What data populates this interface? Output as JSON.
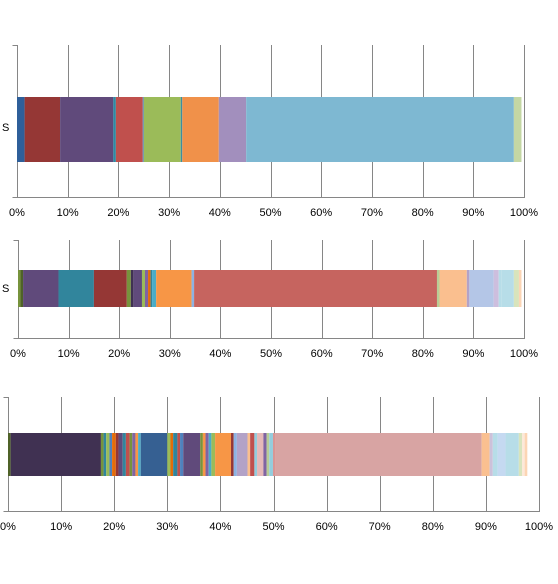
{
  "chart_data": [
    {
      "type": "bar",
      "orientation": "horizontal",
      "stacked": "percent",
      "categories": [
        "S"
      ],
      "xlim": [
        0,
        100
      ],
      "ticks": [
        "0%",
        "10%",
        "20%",
        "30%",
        "40%",
        "50%",
        "60%",
        "70%",
        "80%",
        "90%",
        "100%"
      ],
      "grid": true,
      "legend": "none",
      "segments": [
        {
          "value": 1.5,
          "color": "#2e5f9a"
        },
        {
          "value": 7.0,
          "color": "#953735"
        },
        {
          "value": 10.5,
          "color": "#604a7b"
        },
        {
          "value": 0.5,
          "color": "#2d8ba4"
        },
        {
          "value": 5.3,
          "color": "#c0504d"
        },
        {
          "value": 0.2,
          "color": "#4f81bd"
        },
        {
          "value": 7.3,
          "color": "#9bbb59"
        },
        {
          "value": 0.3,
          "color": "#3c8ea0"
        },
        {
          "value": 7.2,
          "color": "#f0914a"
        },
        {
          "value": 5.4,
          "color": "#a28fbd"
        },
        {
          "value": 52.8,
          "color": "#7eb8d2"
        },
        {
          "value": 1.5,
          "color": "#c4d7a4"
        }
      ]
    },
    {
      "type": "bar",
      "orientation": "horizontal",
      "stacked": "percent",
      "categories": [
        "S"
      ],
      "xlim": [
        0,
        100
      ],
      "ticks": [
        "0%",
        "10%",
        "20%",
        "30%",
        "40%",
        "50%",
        "60%",
        "70%",
        "80%",
        "90%",
        "100%"
      ],
      "grid": true,
      "legend": "none",
      "segments": [
        {
          "value": 0.5,
          "color": "#77933c"
        },
        {
          "value": 0.5,
          "color": "#4f6228"
        },
        {
          "value": 7.0,
          "color": "#604a7b"
        },
        {
          "value": 7.0,
          "color": "#31859c"
        },
        {
          "value": 6.5,
          "color": "#953735"
        },
        {
          "value": 0.8,
          "color": "#77933c"
        },
        {
          "value": 0.5,
          "color": "#403152"
        },
        {
          "value": 1.7,
          "color": "#604a7b"
        },
        {
          "value": 0.6,
          "color": "#9bbb59"
        },
        {
          "value": 0.6,
          "color": "#8064a2"
        },
        {
          "value": 0.5,
          "color": "#e46c0a"
        },
        {
          "value": 0.3,
          "color": "#31859c"
        },
        {
          "value": 0.8,
          "color": "#4bacc6"
        },
        {
          "value": 7.0,
          "color": "#f79646"
        },
        {
          "value": 0.5,
          "color": "#8db3e2"
        },
        {
          "value": 48.0,
          "color": "#c6645f"
        },
        {
          "value": 0.5,
          "color": "#b9cd96"
        },
        {
          "value": 5.4,
          "color": "#fabf8f"
        },
        {
          "value": 0.5,
          "color": "#b3a2c7"
        },
        {
          "value": 4.8,
          "color": "#b4c6e7"
        },
        {
          "value": 1.0,
          "color": "#cdbede"
        },
        {
          "value": 0.5,
          "color": "#b7dde8"
        },
        {
          "value": 2.5,
          "color": "#b7dde8"
        },
        {
          "value": 1.0,
          "color": "#d8e4bc"
        },
        {
          "value": 0.5,
          "color": "#fbd5b5"
        }
      ]
    },
    {
      "type": "bar",
      "orientation": "horizontal",
      "stacked": "percent",
      "categories": [
        ""
      ],
      "xlim": [
        0,
        100
      ],
      "ticks": [
        "0%",
        "10%",
        "20%",
        "30%",
        "40%",
        "50%",
        "60%",
        "70%",
        "80%",
        "90%",
        "100%"
      ],
      "grid": true,
      "legend": "none",
      "segments": [
        {
          "value": 0.5,
          "color": "#4f6228"
        },
        {
          "value": 17.0,
          "color": "#403152"
        },
        {
          "value": 0.5,
          "color": "#77933c"
        },
        {
          "value": 0.5,
          "color": "#31859c"
        },
        {
          "value": 0.6,
          "color": "#9bbb59"
        },
        {
          "value": 0.5,
          "color": "#4f81bd"
        },
        {
          "value": 0.7,
          "color": "#e46c0a"
        },
        {
          "value": 0.5,
          "color": "#953735"
        },
        {
          "value": 0.8,
          "color": "#604a7b"
        },
        {
          "value": 0.6,
          "color": "#31859c"
        },
        {
          "value": 0.7,
          "color": "#c0504d"
        },
        {
          "value": 0.5,
          "color": "#77933c"
        },
        {
          "value": 0.6,
          "color": "#8064a2"
        },
        {
          "value": 0.5,
          "color": "#f79646"
        },
        {
          "value": 0.5,
          "color": "#4bacc6"
        },
        {
          "value": 5.0,
          "color": "#366092"
        },
        {
          "value": 0.6,
          "color": "#9bbb59"
        },
        {
          "value": 0.5,
          "color": "#e46c0a"
        },
        {
          "value": 0.8,
          "color": "#31859c"
        },
        {
          "value": 0.5,
          "color": "#c0504d"
        },
        {
          "value": 0.6,
          "color": "#4f81bd"
        },
        {
          "value": 3.2,
          "color": "#604a7b"
        },
        {
          "value": 0.5,
          "color": "#77933c"
        },
        {
          "value": 0.5,
          "color": "#f79646"
        },
        {
          "value": 0.6,
          "color": "#8064a2"
        },
        {
          "value": 0.5,
          "color": "#4bacc6"
        },
        {
          "value": 0.7,
          "color": "#9bbb59"
        },
        {
          "value": 3.0,
          "color": "#f79646"
        },
        {
          "value": 0.5,
          "color": "#953735"
        },
        {
          "value": 0.6,
          "color": "#8db3e2"
        },
        {
          "value": 2.0,
          "color": "#b3a2c7"
        },
        {
          "value": 0.5,
          "color": "#fabf8f"
        },
        {
          "value": 0.8,
          "color": "#c0504d"
        },
        {
          "value": 0.5,
          "color": "#93cddd"
        },
        {
          "value": 1.2,
          "color": "#e6b9b8"
        },
        {
          "value": 0.6,
          "color": "#8064a2"
        },
        {
          "value": 0.5,
          "color": "#b9cd96"
        },
        {
          "value": 0.7,
          "color": "#93cddd"
        },
        {
          "value": 0.5,
          "color": "#d99694"
        },
        {
          "value": 38.8,
          "color": "#d8a4a3"
        },
        {
          "value": 1.5,
          "color": "#fac090"
        },
        {
          "value": 0.6,
          "color": "#ccc1da"
        },
        {
          "value": 0.9,
          "color": "#b7dde8"
        },
        {
          "value": 1.5,
          "color": "#c5d9f1"
        },
        {
          "value": 2.5,
          "color": "#b7dde8"
        },
        {
          "value": 0.6,
          "color": "#d7e4bd"
        },
        {
          "value": 0.5,
          "color": "#fde9d9"
        },
        {
          "value": 0.5,
          "color": "#fcd5b4"
        }
      ]
    }
  ]
}
